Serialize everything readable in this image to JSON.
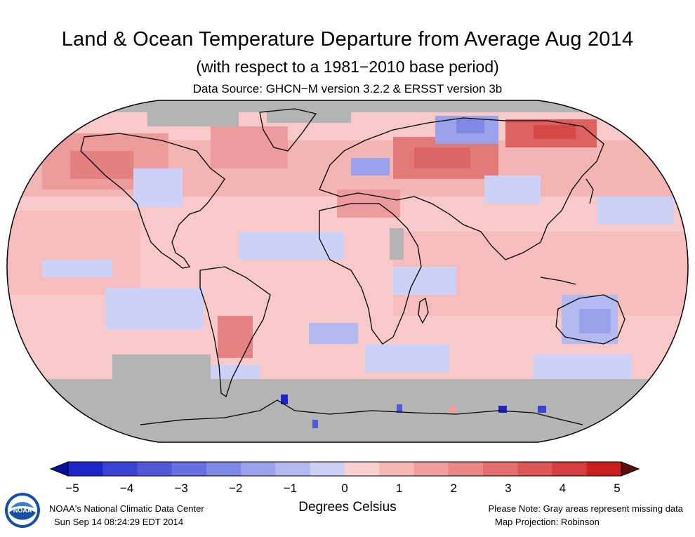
{
  "header": {
    "title": "Land & Ocean Temperature Departure from Average Aug 2014",
    "subtitle": "(with respect to a 1981−2010 base period)",
    "source": "Data Source: GHCN−M version 3.2.2 & ERSST version 3b"
  },
  "map": {
    "projection": "Robinson",
    "missing_color": "#b4b4b4",
    "coastline_color": "#000000"
  },
  "colorbar": {
    "ticks": [
      "−5",
      "−4",
      "−3",
      "−2",
      "−1",
      "0",
      "1",
      "2",
      "3",
      "4",
      "5"
    ],
    "colors": [
      "#1d24c8",
      "#3a42d2",
      "#5058d8",
      "#6670de",
      "#7f88e4",
      "#9aa2ea",
      "#b4baf0",
      "#cdd1f6",
      "#f9cfcf",
      "#f6b7b7",
      "#f19e9e",
      "#eb8686",
      "#e46e6e",
      "#dc5656",
      "#d43e3e",
      "#c82020"
    ],
    "low_end_color": "#0a0fa0",
    "high_end_color": "#5a0b0b",
    "unit": "Degrees Celsius"
  },
  "footer": {
    "org": "NOAA's National Climatic Data Center",
    "timestamp": "Sun Sep 14 08:24:29 EDT 2014",
    "note": "Please Note: Gray areas represent missing data",
    "projection_note": "Map Projection: Robinson",
    "logo_text": "NOAA"
  }
}
